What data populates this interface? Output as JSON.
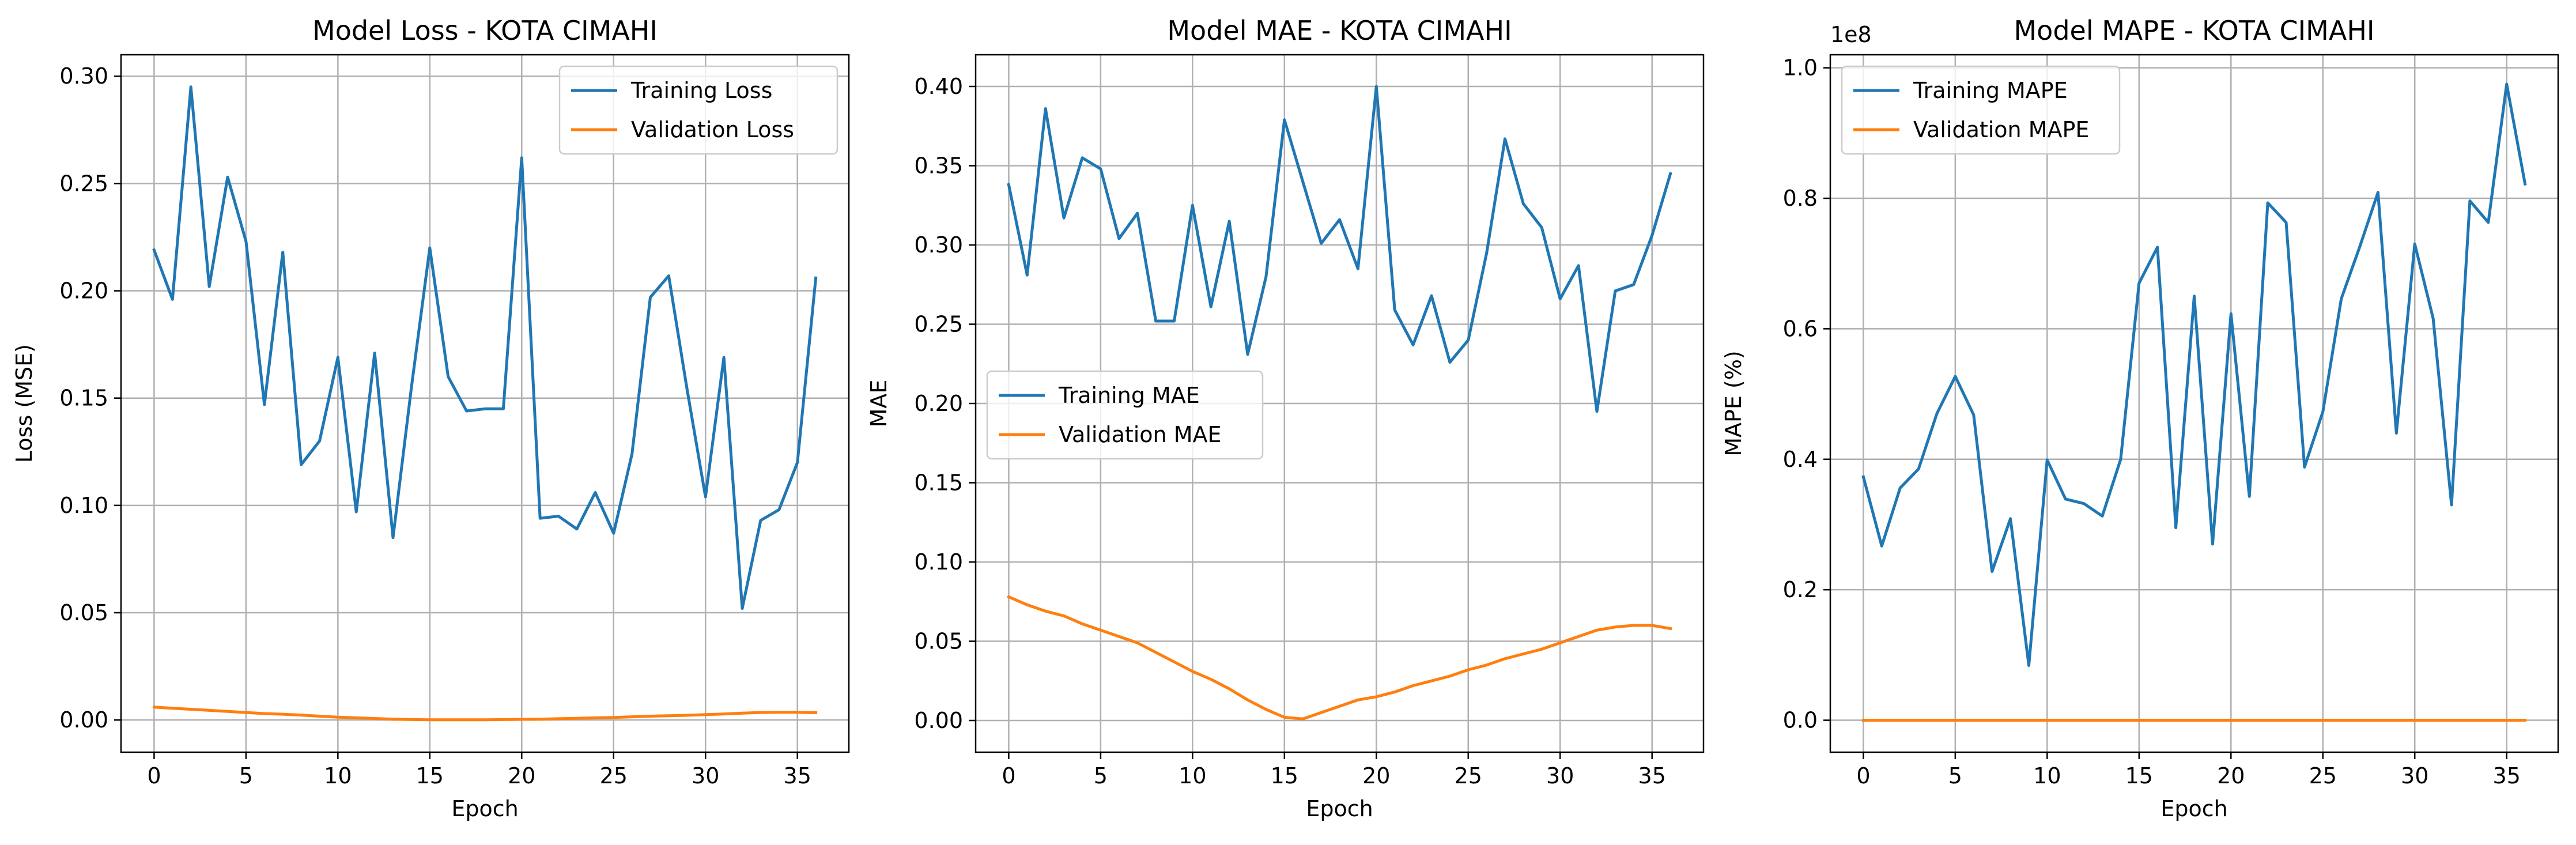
{
  "chart_data": [
    {
      "type": "line",
      "title": "Model Loss - KOTA CIMAHI",
      "xlabel": "Epoch",
      "ylabel": "Loss (MSE)",
      "xlim": [
        -1.8,
        37.8
      ],
      "ylim": [
        -0.015,
        0.31
      ],
      "xticks": [
        0,
        5,
        10,
        15,
        20,
        25,
        30,
        35
      ],
      "yticks": [
        0.0,
        0.05,
        0.1,
        0.15,
        0.2,
        0.25,
        0.3
      ],
      "ytick_labels": [
        "0.00",
        "0.05",
        "0.10",
        "0.15",
        "0.20",
        "0.25",
        "0.30"
      ],
      "y_multiplier": "",
      "grid": true,
      "legend_position": "upper right",
      "x": [
        0,
        1,
        2,
        3,
        4,
        5,
        6,
        7,
        8,
        9,
        10,
        11,
        12,
        13,
        14,
        15,
        16,
        17,
        18,
        19,
        20,
        21,
        22,
        23,
        24,
        25,
        26,
        27,
        28,
        29,
        30,
        31,
        32,
        33,
        34,
        35,
        36
      ],
      "series": [
        {
          "name": "Training Loss",
          "color": "#1f77b4",
          "values": [
            0.219,
            0.196,
            0.295,
            0.202,
            0.253,
            0.223,
            0.147,
            0.218,
            0.119,
            0.13,
            0.169,
            0.097,
            0.171,
            0.085,
            0.155,
            0.22,
            0.16,
            0.144,
            0.145,
            0.145,
            0.262,
            0.094,
            0.095,
            0.089,
            0.106,
            0.087,
            0.124,
            0.197,
            0.207,
            0.154,
            0.104,
            0.169,
            0.052,
            0.093,
            0.098,
            0.12,
            0.206
          ]
        },
        {
          "name": "Validation Loss",
          "color": "#ff7f0e",
          "values": [
            0.006,
            0.0055,
            0.005,
            0.0045,
            0.004,
            0.0035,
            0.003,
            0.0027,
            0.0023,
            0.0018,
            0.0013,
            0.001,
            0.0007,
            0.0004,
            0.0002,
            0.0001,
            0.0001,
            0.0001,
            0.0001,
            0.0002,
            0.0003,
            0.0004,
            0.0006,
            0.0008,
            0.001,
            0.0012,
            0.0015,
            0.0018,
            0.002,
            0.0022,
            0.0025,
            0.0028,
            0.0032,
            0.0035,
            0.0036,
            0.0036,
            0.0034
          ]
        }
      ]
    },
    {
      "type": "line",
      "title": "Model MAE - KOTA CIMAHI",
      "xlabel": "Epoch",
      "ylabel": "MAE",
      "xlim": [
        -1.8,
        37.8
      ],
      "ylim": [
        -0.02,
        0.42
      ],
      "xticks": [
        0,
        5,
        10,
        15,
        20,
        25,
        30,
        35
      ],
      "yticks": [
        0.0,
        0.05,
        0.1,
        0.15,
        0.2,
        0.25,
        0.3,
        0.35,
        0.4
      ],
      "ytick_labels": [
        "0.00",
        "0.05",
        "0.10",
        "0.15",
        "0.20",
        "0.25",
        "0.30",
        "0.35",
        "0.40"
      ],
      "y_multiplier": "",
      "grid": true,
      "legend_position": "center left",
      "x": [
        0,
        1,
        2,
        3,
        4,
        5,
        6,
        7,
        8,
        9,
        10,
        11,
        12,
        13,
        14,
        15,
        16,
        17,
        18,
        19,
        20,
        21,
        22,
        23,
        24,
        25,
        26,
        27,
        28,
        29,
        30,
        31,
        32,
        33,
        34,
        35,
        36
      ],
      "series": [
        {
          "name": "Training MAE",
          "color": "#1f77b4",
          "values": [
            0.338,
            0.281,
            0.386,
            0.317,
            0.355,
            0.348,
            0.304,
            0.32,
            0.252,
            0.252,
            0.325,
            0.261,
            0.315,
            0.231,
            0.28,
            0.379,
            0.34,
            0.301,
            0.316,
            0.285,
            0.4,
            0.259,
            0.237,
            0.268,
            0.226,
            0.24,
            0.295,
            0.367,
            0.326,
            0.311,
            0.266,
            0.287,
            0.195,
            0.271,
            0.275,
            0.306,
            0.345
          ]
        },
        {
          "name": "Validation MAE",
          "color": "#ff7f0e",
          "values": [
            0.078,
            0.073,
            0.069,
            0.066,
            0.061,
            0.057,
            0.053,
            0.049,
            0.043,
            0.037,
            0.031,
            0.026,
            0.02,
            0.013,
            0.007,
            0.002,
            0.001,
            0.005,
            0.009,
            0.013,
            0.015,
            0.018,
            0.022,
            0.025,
            0.028,
            0.032,
            0.035,
            0.039,
            0.042,
            0.045,
            0.049,
            0.053,
            0.057,
            0.059,
            0.06,
            0.06,
            0.058
          ]
        }
      ]
    },
    {
      "type": "line",
      "title": "Model MAPE - KOTA CIMAHI",
      "xlabel": "Epoch",
      "ylabel": "MAPE (%)",
      "xlim": [
        -1.8,
        37.8
      ],
      "ylim": [
        -0.049,
        1.02
      ],
      "xticks": [
        0,
        5,
        10,
        15,
        20,
        25,
        30,
        35
      ],
      "yticks": [
        0.0,
        0.2,
        0.4,
        0.6,
        0.8,
        1.0
      ],
      "ytick_labels": [
        "0.0",
        "0.2",
        "0.4",
        "0.6",
        "0.8",
        "1.0"
      ],
      "y_multiplier": "1e8",
      "grid": true,
      "legend_position": "upper left",
      "x": [
        0,
        1,
        2,
        3,
        4,
        5,
        6,
        7,
        8,
        9,
        10,
        11,
        12,
        13,
        14,
        15,
        16,
        17,
        18,
        19,
        20,
        21,
        22,
        23,
        24,
        25,
        26,
        27,
        28,
        29,
        30,
        31,
        32,
        33,
        34,
        35,
        36
      ],
      "series": [
        {
          "name": "Training MAPE",
          "color": "#1f77b4",
          "values": [
            0.373,
            0.267,
            0.356,
            0.385,
            0.47,
            0.527,
            0.468,
            0.228,
            0.309,
            0.084,
            0.399,
            0.339,
            0.332,
            0.313,
            0.4,
            0.67,
            0.725,
            0.295,
            0.65,
            0.27,
            0.623,
            0.343,
            0.793,
            0.763,
            0.388,
            0.473,
            0.646,
            0.725,
            0.809,
            0.44,
            0.73,
            0.616,
            0.33,
            0.796,
            0.763,
            0.975,
            0.822
          ]
        },
        {
          "name": "Validation MAPE",
          "color": "#ff7f0e",
          "values": [
            0,
            0,
            0,
            0,
            0,
            0,
            0,
            0,
            0,
            0,
            0,
            0,
            0,
            0,
            0,
            0,
            0,
            0,
            0,
            0,
            0,
            0,
            0,
            0,
            0,
            0,
            0,
            0,
            0,
            0,
            0,
            0,
            0,
            0,
            0,
            0,
            0
          ]
        }
      ]
    }
  ]
}
